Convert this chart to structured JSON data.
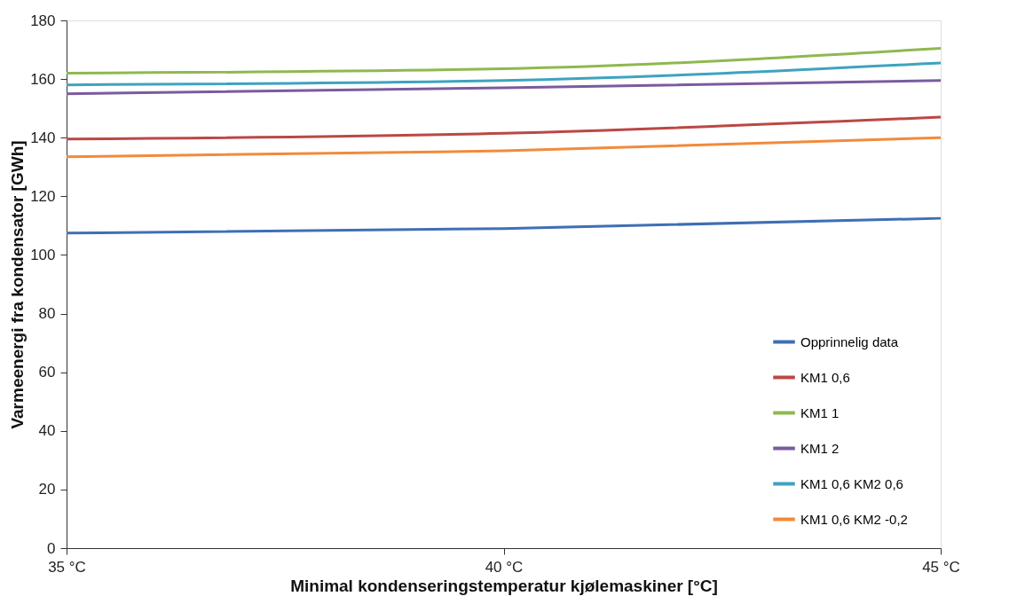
{
  "chart_data": {
    "type": "line",
    "xlabel": "Minimal  kondenseringstemperatur kjølemaskiner [°C]",
    "ylabel": "Varmeenergi fra kondensator [GWh]",
    "x": [
      35,
      40,
      45
    ],
    "xlim": [
      35,
      45
    ],
    "xticks": [
      {
        "value": 35,
        "label": "35 °C"
      },
      {
        "value": 40,
        "label": "40 °C"
      },
      {
        "value": 45,
        "label": "45 °C"
      }
    ],
    "ylim": [
      0,
      180
    ],
    "yticks": [
      0,
      20,
      40,
      60,
      80,
      100,
      120,
      140,
      160,
      180
    ],
    "grid": false,
    "legend": "bottom right",
    "marker": "none",
    "line_style": "solid",
    "series": [
      {
        "name": "Opprinnelig data",
        "color": "#3f6fb5",
        "values": [
          107.5,
          109,
          112.5
        ]
      },
      {
        "name": "KM1  0,6",
        "color": "#bb4844",
        "values": [
          139.5,
          141.5,
          147
        ]
      },
      {
        "name": "KM1  1",
        "color": "#8fb84f",
        "values": [
          162,
          163.5,
          170.5
        ]
      },
      {
        "name": "KM1  2",
        "color": "#7a5b9e",
        "values": [
          155,
          157,
          159.5
        ]
      },
      {
        "name": "KM1 0,6   KM2 0,6",
        "color": "#3ea3bf",
        "values": [
          158,
          159.5,
          165.5
        ]
      },
      {
        "name": "KM1 0,6   KM2  -0,2",
        "color": "#f28a3a",
        "values": [
          133.5,
          135.5,
          140
        ]
      }
    ]
  }
}
